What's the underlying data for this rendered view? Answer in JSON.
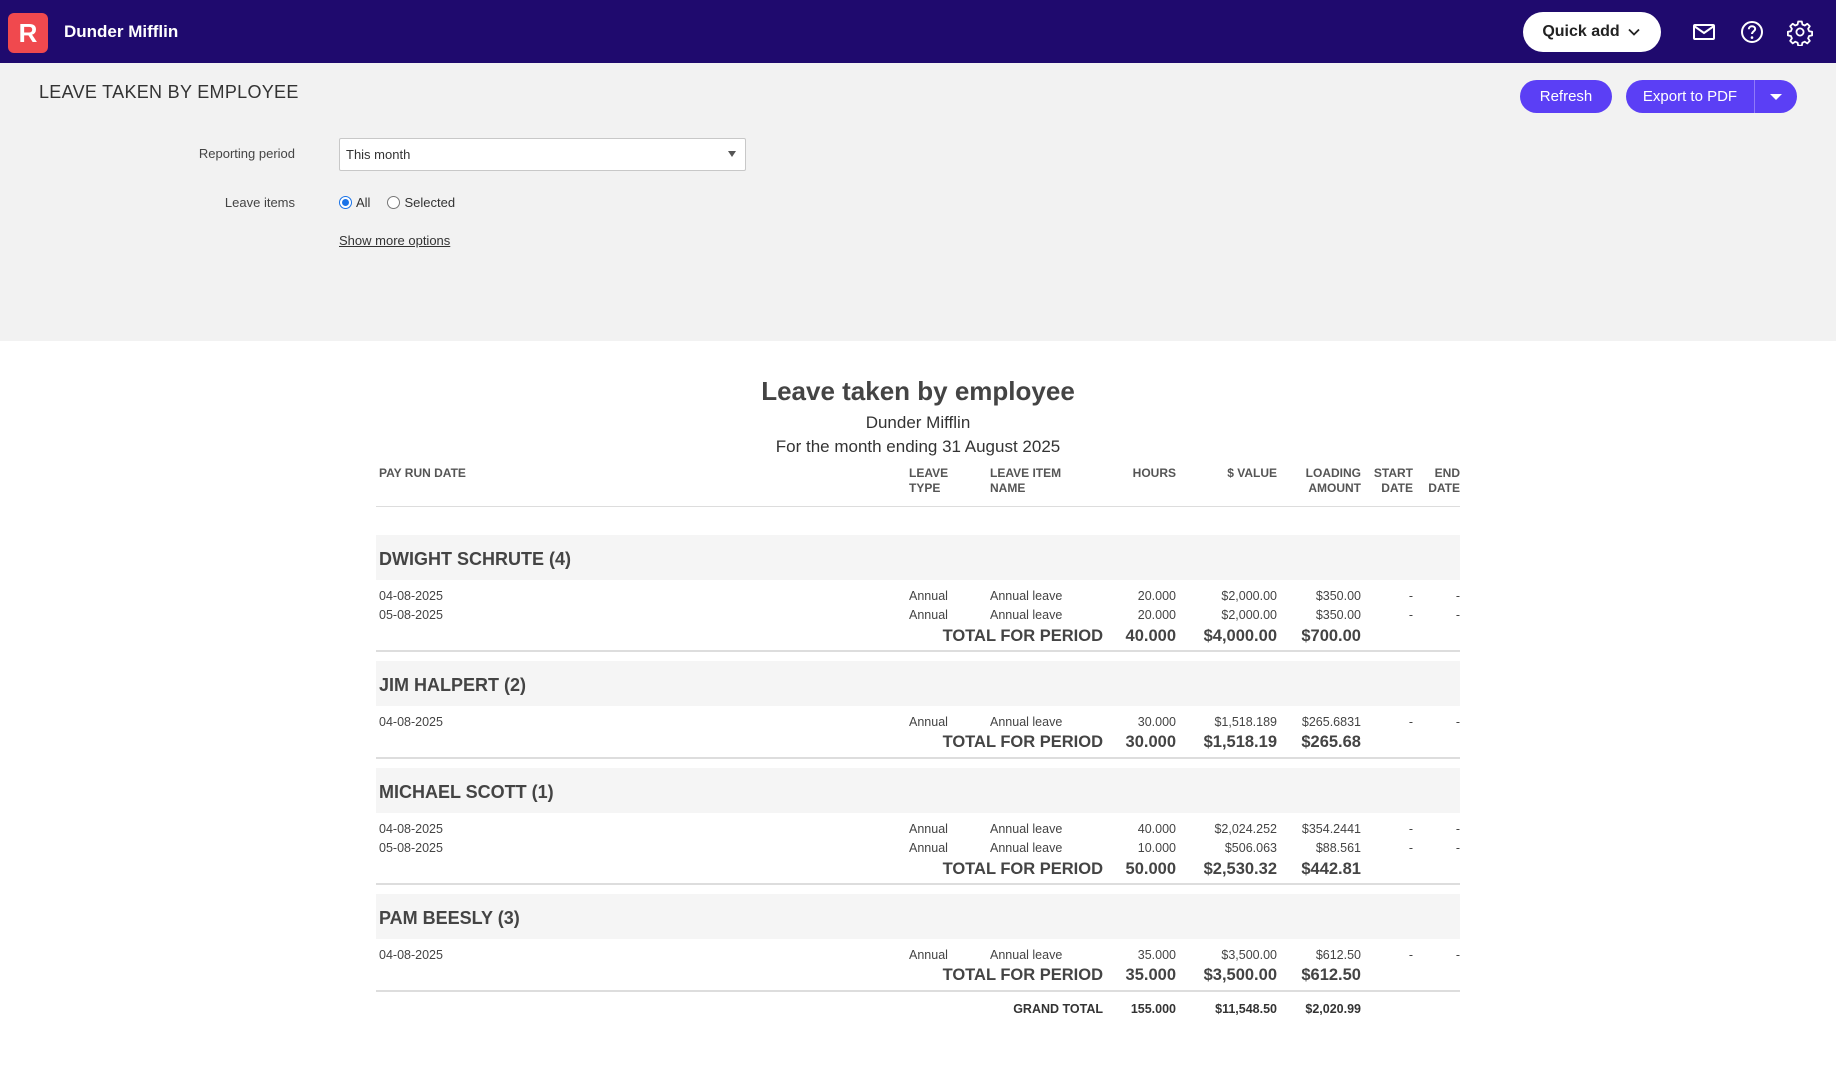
{
  "header": {
    "logo_letter": "R",
    "company": "Dunder Mifflin",
    "quick_add": "Quick add"
  },
  "page": {
    "title": "LEAVE TAKEN BY EMPLOYEE",
    "refresh": "Refresh",
    "export": "Export to PDF"
  },
  "filters": {
    "reporting_period_label": "Reporting period",
    "reporting_period_value": "This month",
    "leave_items_label": "Leave items",
    "option_all": "All",
    "option_selected": "Selected",
    "show_more": "Show more options"
  },
  "report": {
    "title": "Leave taken by employee",
    "company": "Dunder Mifflin",
    "period": "For the month ending 31 August 2025",
    "columns": {
      "pay_run_date": "PAY RUN DATE",
      "leave_type_1": "LEAVE",
      "leave_type_2": "TYPE",
      "leave_item_1": "LEAVE ITEM",
      "leave_item_2": "NAME",
      "hours": "HOURS",
      "value": "$ VALUE",
      "loading_1": "LOADING",
      "loading_2": "AMOUNT",
      "start_1": "START",
      "start_2": "DATE",
      "end_1": "END",
      "end_2": "DATE"
    },
    "total_label": "TOTAL FOR PERIOD",
    "groups": [
      {
        "name": "DWIGHT SCHRUTE (4)",
        "rows": [
          {
            "date": "04-08-2025",
            "type": "Annual",
            "item": "Annual leave",
            "hours": "20.000",
            "value": "$2,000.00",
            "loading": "$350.00",
            "start": "-",
            "end": "-"
          },
          {
            "date": "05-08-2025",
            "type": "Annual",
            "item": "Annual leave",
            "hours": "20.000",
            "value": "$2,000.00",
            "loading": "$350.00",
            "start": "-",
            "end": "-"
          }
        ],
        "total": {
          "hours": "40.000",
          "value": "$4,000.00",
          "loading": "$700.00"
        }
      },
      {
        "name": "JIM HALPERT (2)",
        "rows": [
          {
            "date": "04-08-2025",
            "type": "Annual",
            "item": "Annual leave",
            "hours": "30.000",
            "value": "$1,518.189",
            "loading": "$265.6831",
            "start": "-",
            "end": "-"
          }
        ],
        "total": {
          "hours": "30.000",
          "value": "$1,518.19",
          "loading": "$265.68"
        }
      },
      {
        "name": "MICHAEL SCOTT (1)",
        "rows": [
          {
            "date": "04-08-2025",
            "type": "Annual",
            "item": "Annual leave",
            "hours": "40.000",
            "value": "$2,024.252",
            "loading": "$354.2441",
            "start": "-",
            "end": "-"
          },
          {
            "date": "05-08-2025",
            "type": "Annual",
            "item": "Annual leave",
            "hours": "10.000",
            "value": "$506.063",
            "loading": "$88.561",
            "start": "-",
            "end": "-"
          }
        ],
        "total": {
          "hours": "50.000",
          "value": "$2,530.32",
          "loading": "$442.81"
        }
      },
      {
        "name": "PAM BEESLY (3)",
        "rows": [
          {
            "date": "04-08-2025",
            "type": "Annual",
            "item": "Annual leave",
            "hours": "35.000",
            "value": "$3,500.00",
            "loading": "$612.50",
            "start": "-",
            "end": "-"
          }
        ],
        "total": {
          "hours": "35.000",
          "value": "$3,500.00",
          "loading": "$612.50"
        }
      }
    ],
    "grand_total": {
      "label": "GRAND TOTAL",
      "hours": "155.000",
      "value": "$11,548.50",
      "loading": "$2,020.99"
    }
  }
}
